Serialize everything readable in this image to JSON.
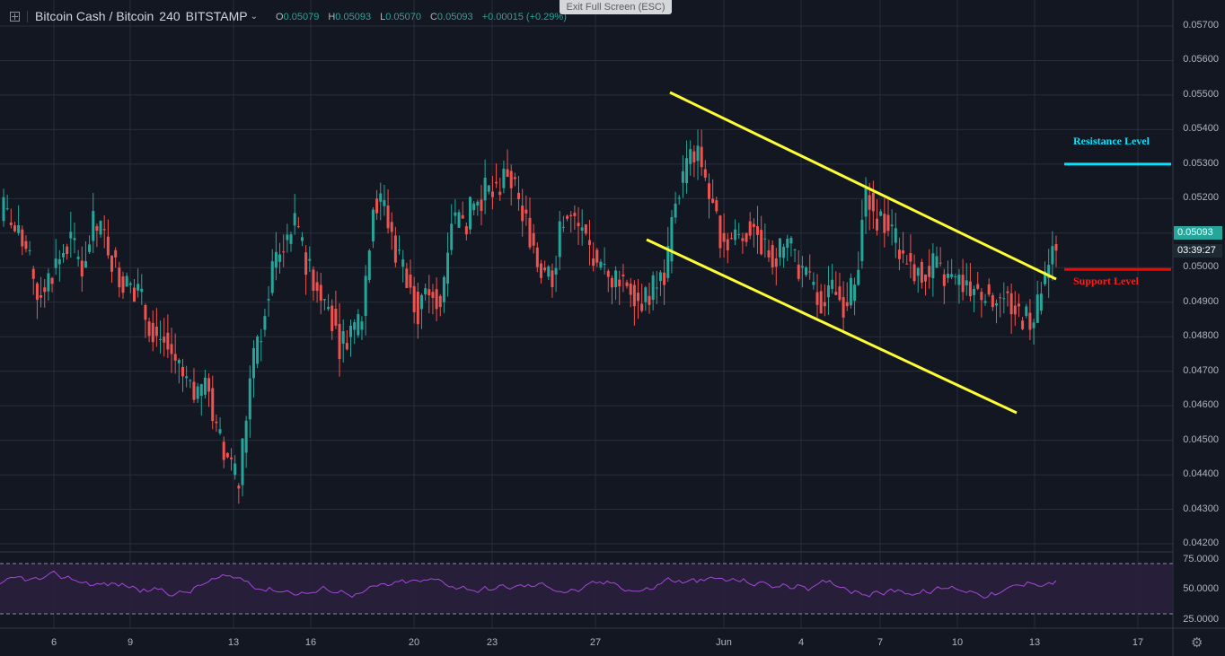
{
  "header": {
    "symbol": "Bitcoin Cash / Bitcoin",
    "interval": "240",
    "exchange": "BITSTAMP",
    "caret": "⌄",
    "ohlc": {
      "o_label": "O",
      "o_value": "0.05079",
      "h_label": "H",
      "h_value": "0.05093",
      "l_label": "L",
      "l_value": "0.05070",
      "c_label": "C",
      "c_value": "0.05093",
      "change": "+0.00015 (+0.29%)"
    }
  },
  "exit_fullscreen_label": "Exit Full Screen (ESC)",
  "annotations": {
    "resistance": "Resistance Level",
    "support": "Support Level"
  },
  "price_axis": [
    "0.05700",
    "0.05600",
    "0.05500",
    "0.05400",
    "0.05300",
    "0.05200",
    "0.05100",
    "0.05000",
    "0.04900",
    "0.04800",
    "0.04700",
    "0.04600",
    "0.04500",
    "0.04400",
    "0.04300",
    "0.04200"
  ],
  "last_price": "0.05093",
  "countdown": "03:39:27",
  "rsi_axis": [
    "75.0000",
    "50.0000",
    "25.0000"
  ],
  "time_axis": [
    "6",
    "9",
    "13",
    "16",
    "20",
    "23",
    "27",
    "Jun",
    "4",
    "7",
    "10",
    "13",
    "17"
  ],
  "colors": {
    "bull": "#26a69a",
    "bear": "#ef5350",
    "channel": "#ffff33",
    "resistance": "#00e5ff",
    "support": "#ff0000",
    "rsi": "#a548d6"
  },
  "chart_data": {
    "type": "candlestick",
    "ylim": [
      0.0415,
      0.0573
    ],
    "resistance_level": 0.053,
    "support_level": 0.04995,
    "closes": [
      0.0517,
      0.051,
      0.0505,
      0.0492,
      0.0497,
      0.0503,
      0.0508,
      0.05,
      0.0512,
      0.0509,
      0.05,
      0.0495,
      0.0493,
      0.0484,
      0.048,
      0.0475,
      0.0468,
      0.0462,
      0.0468,
      0.0452,
      0.0445,
      0.0437,
      0.0468,
      0.0482,
      0.05,
      0.0508,
      0.0512,
      0.0502,
      0.0495,
      0.0489,
      0.0478,
      0.0482,
      0.0486,
      0.052,
      0.0518,
      0.0505,
      0.0498,
      0.0488,
      0.0493,
      0.049,
      0.0515,
      0.0512,
      0.0518,
      0.0522,
      0.0522,
      0.0528,
      0.0518,
      0.051,
      0.05,
      0.0498,
      0.0515,
      0.0513,
      0.0508,
      0.05,
      0.0497,
      0.0498,
      0.0495,
      0.049,
      0.0494,
      0.0497,
      0.052,
      0.053,
      0.0535,
      0.052,
      0.051,
      0.0508,
      0.051,
      0.0512,
      0.0505,
      0.0503,
      0.0507,
      0.05,
      0.0495,
      0.049,
      0.0493,
      0.049,
      0.0495,
      0.0521,
      0.0515,
      0.0512,
      0.0505,
      0.0501,
      0.0498,
      0.05,
      0.0497,
      0.0495,
      0.0496,
      0.0493,
      0.0492,
      0.0491,
      0.0489,
      0.0486,
      0.0484,
      0.0497,
      0.05093
    ]
  }
}
